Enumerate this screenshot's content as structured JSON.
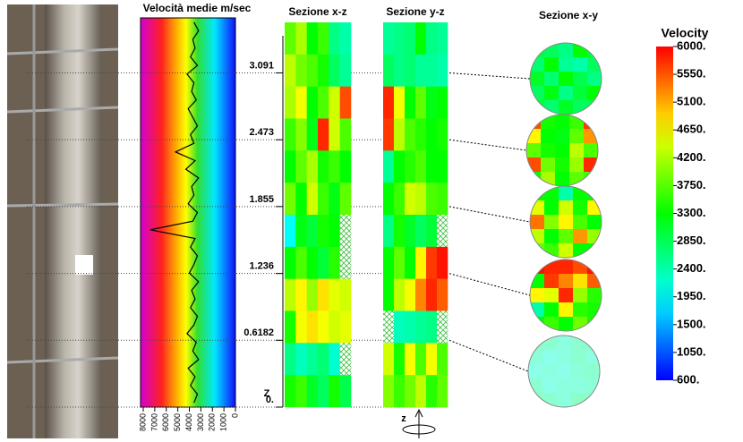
{
  "profile": {
    "title": "Velocità medie m/sec",
    "xlim": [
      8000,
      0
    ],
    "xticks": [
      8000,
      7000,
      6000,
      5000,
      4000,
      3000,
      2000,
      1000,
      0
    ],
    "ylim": [
      0,
      3.6
    ],
    "yticks": [
      {
        "value": 0,
        "label": "0."
      },
      0.6182,
      1.236,
      1.855,
      2.473,
      3.091
    ],
    "axis_label": "Z",
    "heights": [
      0.04,
      0.12,
      0.2,
      0.28,
      0.36,
      0.44,
      0.52,
      0.6,
      0.68,
      0.76,
      0.84,
      0.92,
      1,
      1.08,
      1.16,
      1.24,
      1.32,
      1.4,
      1.48,
      1.56,
      1.64,
      1.72,
      1.8,
      1.88,
      1.96,
      2.04,
      2.12,
      2.2,
      2.28,
      2.36,
      2.44,
      2.52,
      2.6,
      2.68,
      2.76,
      2.84,
      2.92,
      3,
      3.08,
      3.16,
      3.24,
      3.32,
      3.4,
      3.48,
      3.56
    ],
    "velocities": [
      3600,
      3300,
      3900,
      3500,
      4100,
      3200,
      3700,
      3400,
      4200,
      3600,
      3300,
      3900,
      3500,
      3800,
      3200,
      4000,
      3600,
      3300,
      3900,
      3500,
      7400,
      3700,
      3300,
      4100,
      3600,
      3800,
      3200,
      4300,
      3500,
      5200,
      3600,
      3900,
      3300,
      3700,
      4100,
      3400,
      3800,
      3600,
      4200,
      3300,
      3900,
      3500,
      3700,
      3200,
      3600
    ]
  },
  "xz": {
    "title": "Sezione x-z",
    "cells": [
      [
        3800,
        4200,
        3300,
        3600,
        2600,
        2400
      ],
      [
        4300,
        3900,
        3700,
        3400,
        2800,
        2500
      ],
      [
        4200,
        4600,
        3300,
        3700,
        4400,
        5600
      ],
      [
        3600,
        4000,
        3200,
        5800,
        4400,
        3700
      ],
      [
        3300,
        3800,
        4200,
        3400,
        3600,
        3300
      ],
      [
        3900,
        3300,
        4400,
        3600,
        3200,
        3800
      ],
      [
        2000,
        3200,
        3000,
        3400,
        3300,
        null
      ],
      [
        3300,
        3700,
        3300,
        3000,
        3500,
        null
      ],
      [
        4300,
        4700,
        4100,
        4800,
        4500,
        4400
      ],
      [
        3400,
        4600,
        4800,
        4600,
        4400,
        4500
      ],
      [
        2600,
        2300,
        2500,
        2700,
        2200,
        null
      ],
      [
        3400,
        3600,
        3100,
        2800,
        3400,
        2900
      ]
    ]
  },
  "yz": {
    "title": "Sezione y-z",
    "axis_label": "z",
    "cells": [
      [
        2500,
        2600,
        2700,
        3300,
        2600,
        2500
      ],
      [
        2800,
        2600,
        2700,
        2500,
        2500,
        2400
      ],
      [
        5800,
        4600,
        3300,
        3800,
        3200,
        3300
      ],
      [
        5700,
        4300,
        3700,
        3500,
        3300,
        3400
      ],
      [
        2500,
        3300,
        3500,
        3700,
        3300,
        3300
      ],
      [
        3300,
        3600,
        4400,
        4300,
        3700,
        3600
      ],
      [
        2600,
        3400,
        3100,
        2800,
        3000,
        null
      ],
      [
        3300,
        3800,
        3300,
        4700,
        5700,
        5900
      ],
      [
        3300,
        4300,
        4600,
        5300,
        5800,
        5500
      ],
      [
        null,
        2300,
        2400,
        2500,
        2600,
        null
      ],
      [
        4400,
        3400,
        4600,
        3700,
        4600,
        3700
      ],
      [
        4000,
        3600,
        3900,
        4300,
        3500,
        3800
      ]
    ]
  },
  "xy": {
    "title": "Sezione x-y",
    "slices": [
      [
        [
          3000,
          2800,
          2600,
          3300,
          3000
        ],
        [
          2700,
          3300,
          2500,
          2400,
          2800
        ],
        [
          3100,
          2700,
          3300,
          2900,
          2600
        ],
        [
          2800,
          3200,
          2600,
          3000,
          3300
        ],
        [
          3000,
          2700,
          3100,
          2800,
          2900
        ]
      ],
      [
        [
          5600,
          3400,
          3300,
          3600,
          5700
        ],
        [
          4700,
          3300,
          3200,
          3800,
          5200
        ],
        [
          3800,
          3400,
          3300,
          4300,
          3700
        ],
        [
          5600,
          3900,
          3400,
          4100,
          5800
        ],
        [
          3300,
          4200,
          3300,
          3800,
          3600
        ]
      ],
      [
        [
          3300,
          3300,
          2400,
          3300,
          3300
        ],
        [
          4500,
          3300,
          4400,
          3400,
          4700
        ],
        [
          5400,
          4000,
          4700,
          3700,
          3300
        ],
        [
          4300,
          3300,
          3800,
          5200,
          4100
        ],
        [
          3800,
          3600,
          4400,
          3300,
          3300
        ]
      ],
      [
        [
          5900,
          5800,
          5800,
          5600,
          5900
        ],
        [
          3300,
          5700,
          5300,
          4800,
          5500
        ],
        [
          4700,
          4500,
          5800,
          4100,
          3500
        ],
        [
          2400,
          3300,
          4700,
          3500,
          3400
        ],
        [
          3300,
          3600,
          3300,
          3900,
          3400
        ]
      ],
      [
        [
          2600,
          2500,
          2300,
          2500,
          2600
        ],
        [
          2400,
          2200,
          2300,
          2500,
          2300
        ],
        [
          2200,
          2300,
          2200,
          2400,
          2500
        ],
        [
          2500,
          2200,
          2300,
          2300,
          2400
        ],
        [
          2600,
          2500,
          2300,
          2600,
          2500
        ]
      ]
    ]
  },
  "colorbar": {
    "title": "Velocity",
    "lim": [
      600,
      6000
    ],
    "ticks": [
      {
        "value": 6000,
        "label": "6000."
      },
      {
        "value": 5550,
        "label": "5550."
      },
      {
        "value": 5100,
        "label": "5100."
      },
      {
        "value": 4650,
        "label": "4650."
      },
      {
        "value": 4200,
        "label": "4200."
      },
      {
        "value": 3750,
        "label": "3750."
      },
      {
        "value": 3300,
        "label": "3300."
      },
      {
        "value": 2850,
        "label": "2850."
      },
      {
        "value": 2400,
        "label": "2400."
      },
      {
        "value": 1950,
        "label": "1950."
      },
      {
        "value": 1500,
        "label": "1500."
      },
      {
        "value": 1050,
        "label": "1050."
      },
      {
        "value": 600,
        "label": "600."
      }
    ]
  }
}
